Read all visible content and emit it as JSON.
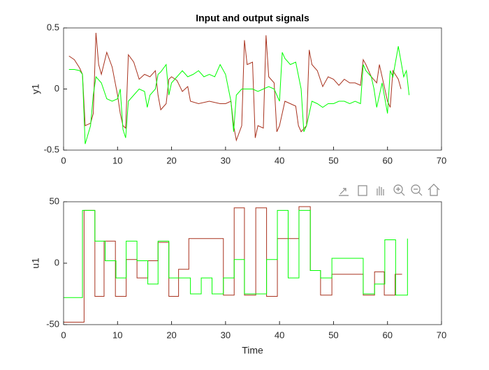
{
  "chart_data": [
    {
      "type": "line",
      "title": "Input and output signals",
      "ylabel": "y1",
      "xlim": [
        0,
        70
      ],
      "xticks": [
        0,
        10,
        20,
        30,
        40,
        50,
        60,
        70
      ],
      "ylim": [
        -0.5,
        0.5
      ],
      "yticks": [
        -0.5,
        0,
        0.5
      ],
      "series": [
        {
          "color": "#a8321e",
          "x": [
            1,
            2,
            3,
            3.5,
            4,
            5,
            5.5,
            6,
            6.5,
            7,
            8,
            9,
            10,
            10.5,
            11,
            11.5,
            12,
            13,
            13.5,
            14,
            15,
            16,
            17,
            17.5,
            18,
            19,
            19.5,
            20,
            21,
            22,
            23,
            23.5,
            25,
            27,
            29,
            30,
            31,
            31.5,
            32,
            33,
            33.5,
            34,
            35,
            35.5,
            36,
            37,
            37.5,
            38,
            39,
            39.5,
            40,
            41,
            42,
            43,
            43.5,
            44,
            45,
            45.5,
            46,
            47,
            48,
            49,
            50,
            51,
            52,
            53,
            54,
            55,
            55.5,
            56,
            57,
            58,
            58.5,
            59,
            60,
            60.5,
            61,
            62,
            62.5
          ],
          "values": [
            0.27,
            0.24,
            0.17,
            0.12,
            -0.3,
            -0.28,
            -0.2,
            0.46,
            0.2,
            0.12,
            0.3,
            0.18,
            -0.05,
            -0.2,
            -0.3,
            -0.32,
            0.28,
            0.22,
            0.15,
            0.08,
            0.12,
            0.1,
            0.15,
            -0.05,
            -0.17,
            -0.12,
            0.08,
            0.1,
            0.07,
            -0.02,
            0.02,
            -0.1,
            -0.12,
            -0.1,
            -0.12,
            -0.12,
            -0.1,
            -0.3,
            -0.42,
            -0.3,
            0.4,
            0.2,
            0.22,
            -0.4,
            -0.3,
            -0.32,
            0.44,
            0.1,
            0.05,
            -0.35,
            -0.3,
            -0.1,
            -0.12,
            -0.14,
            -0.3,
            -0.35,
            -0.3,
            0.32,
            0.2,
            0.15,
            0.02,
            0.1,
            0.08,
            0.03,
            0.08,
            0.05,
            0.05,
            0.03,
            0.24,
            0.2,
            0.1,
            0.05,
            0.2,
            0.1,
            -0.1,
            -0.15,
            0.15,
            0.08,
            0.0
          ]
        },
        {
          "color": "#00ff00",
          "x": [
            1,
            2,
            3,
            3.5,
            4,
            5,
            5.5,
            6,
            7,
            8,
            9,
            10,
            10.5,
            11,
            11.5,
            12,
            13,
            14,
            15,
            15.5,
            16,
            17,
            17.5,
            18,
            19,
            19.5,
            20,
            21,
            22,
            23,
            24,
            25,
            26,
            27,
            28,
            29,
            30,
            31,
            31.5,
            32,
            33,
            34,
            35,
            36,
            37,
            38,
            39,
            40,
            40.5,
            41,
            42,
            43,
            44,
            44.5,
            45,
            46,
            47,
            48,
            49,
            50,
            51,
            52,
            53,
            54,
            55,
            55.5,
            56,
            57,
            57.5,
            58,
            59,
            60,
            60.5,
            61,
            62,
            63,
            63.5,
            64
          ],
          "values": [
            0.16,
            0.16,
            0.15,
            0.12,
            -0.45,
            -0.3,
            -0.05,
            0.1,
            0.05,
            -0.08,
            -0.1,
            -0.08,
            0.0,
            -0.33,
            -0.4,
            -0.1,
            -0.05,
            0.0,
            -0.02,
            -0.15,
            -0.05,
            0.0,
            0.12,
            0.14,
            0.2,
            -0.05,
            0.05,
            0.1,
            0.15,
            0.1,
            0.12,
            0.15,
            0.1,
            0.12,
            0.1,
            0.2,
            0.12,
            -0.1,
            -0.35,
            -0.05,
            0.0,
            0.0,
            0.0,
            -0.02,
            0.0,
            0.02,
            0.0,
            -0.1,
            0.3,
            0.25,
            0.2,
            0.22,
            0.0,
            -0.35,
            -0.3,
            -0.1,
            -0.12,
            -0.15,
            -0.12,
            -0.12,
            -0.1,
            -0.1,
            -0.12,
            -0.1,
            -0.12,
            0.2,
            0.15,
            0.1,
            0.0,
            -0.15,
            0.05,
            -0.2,
            0.15,
            0.1,
            0.35,
            0.1,
            0.15,
            -0.05
          ]
        }
      ]
    },
    {
      "type": "line",
      "xlabel": "Time",
      "ylabel": "u1",
      "xlim": [
        0,
        70
      ],
      "xticks": [
        0,
        10,
        20,
        30,
        40,
        50,
        60,
        70
      ],
      "ylim": [
        -50,
        50
      ],
      "yticks": [
        -50,
        0,
        50
      ],
      "series": [
        {
          "color": "#a8321e",
          "x": [
            0,
            3.8,
            3.8,
            5.8,
            5.8,
            7.5,
            7.5,
            9.6,
            9.6,
            11.6,
            11.6,
            13.6,
            13.6,
            15.6,
            15.6,
            17.5,
            17.5,
            19.5,
            19.5,
            21.3,
            21.3,
            23.2,
            23.2,
            29.6,
            29.6,
            31.6,
            31.6,
            33.5,
            33.5,
            35.6,
            35.6,
            37.6,
            37.6,
            39.6,
            39.6,
            43.6,
            43.6,
            45.7,
            45.7,
            47.6,
            47.6,
            49.7,
            49.7,
            55.5,
            55.5,
            57.6,
            57.6,
            59.4,
            59.4,
            61.4,
            61.4,
            62.7
          ],
          "values": [
            -48,
            -48,
            43,
            43,
            -27,
            -27,
            18,
            18,
            -27,
            -27,
            3,
            3,
            -12,
            -12,
            2,
            2,
            17,
            17,
            -27,
            -27,
            -5,
            -5,
            20,
            20,
            -26,
            -26,
            45,
            45,
            -26,
            -26,
            45,
            45,
            -27,
            -27,
            20,
            20,
            46,
            46,
            -6,
            -6,
            -26,
            -26,
            -9,
            -9,
            -26,
            -26,
            -7,
            -7,
            -26,
            -26,
            -9,
            -9
          ]
        },
        {
          "color": "#00ff00",
          "x": [
            0,
            3.5,
            3.5,
            5.8,
            5.8,
            7.7,
            7.7,
            9.7,
            9.7,
            11.6,
            11.6,
            13.6,
            13.6,
            15.6,
            15.6,
            17.5,
            17.5,
            19.5,
            19.5,
            23.5,
            23.5,
            25.5,
            25.5,
            27.5,
            27.5,
            29.6,
            29.6,
            31.6,
            31.6,
            33.5,
            33.5,
            37.6,
            37.6,
            39.6,
            39.6,
            41.6,
            41.6,
            43.6,
            43.6,
            45.7,
            45.7,
            47.6,
            47.6,
            49.7,
            49.7,
            55.5,
            55.5,
            57.6,
            57.6,
            59.5,
            59.5,
            61.5,
            61.5,
            63.7,
            63.7
          ],
          "values": [
            -28,
            -28,
            43,
            43,
            18,
            18,
            2,
            2,
            -12,
            -12,
            18,
            18,
            2,
            2,
            -17,
            -17,
            18,
            18,
            -12,
            -12,
            -25,
            -25,
            -12,
            -12,
            -25,
            -25,
            -12,
            -12,
            3,
            3,
            -25,
            -25,
            3,
            3,
            43,
            43,
            -12,
            -12,
            43,
            43,
            -6,
            -6,
            -12,
            -12,
            4,
            4,
            -25,
            -25,
            -17,
            -17,
            19,
            19,
            -26,
            -26,
            20
          ]
        }
      ]
    }
  ]
}
